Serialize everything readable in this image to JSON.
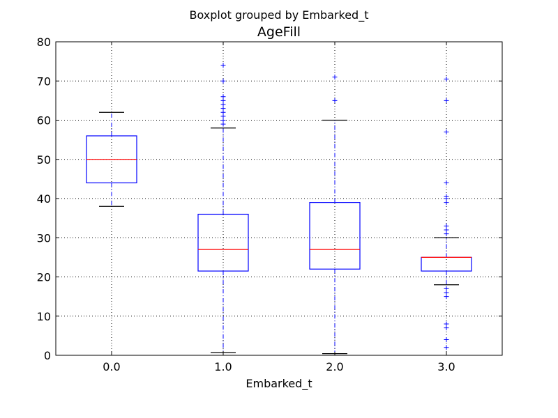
{
  "chart_data": {
    "type": "boxplot",
    "suptitle": "Boxplot grouped by Embarked_t",
    "title": "AgeFill",
    "xlabel": "Embarked_t",
    "ylabel": "",
    "ylim": [
      0,
      80
    ],
    "yticks": [
      0,
      10,
      20,
      30,
      40,
      50,
      60,
      70,
      80
    ],
    "grid": true,
    "categories": [
      "0.0",
      "1.0",
      "2.0",
      "3.0"
    ],
    "boxes": [
      {
        "category": "0.0",
        "whisker_low": 38,
        "q1": 44,
        "median": 50,
        "q3": 56,
        "whisker_high": 62,
        "outliers": []
      },
      {
        "category": "1.0",
        "whisker_low": 0.67,
        "q1": 21.5,
        "median": 27,
        "q3": 36,
        "whisker_high": 58,
        "outliers": [
          59,
          60,
          61,
          62,
          63,
          64,
          65,
          66,
          70,
          74
        ]
      },
      {
        "category": "2.0",
        "whisker_low": 0.42,
        "q1": 22,
        "median": 27,
        "q3": 39,
        "whisker_high": 60,
        "outliers": [
          65,
          71
        ]
      },
      {
        "category": "3.0",
        "whisker_low": 18,
        "q1": 21.5,
        "median": 25,
        "q3": 25,
        "whisker_high": 30,
        "outliers": [
          2,
          4,
          7,
          8,
          15,
          16,
          17,
          31,
          32,
          33,
          39,
          40,
          40.5,
          44,
          57,
          65,
          70.5
        ]
      }
    ],
    "colors": {
      "box": "#0000ff",
      "median": "#ff0000",
      "whisker": "#0000ff",
      "cap": "#000000",
      "outlier": "#0000ff",
      "grid": "#000000"
    }
  }
}
